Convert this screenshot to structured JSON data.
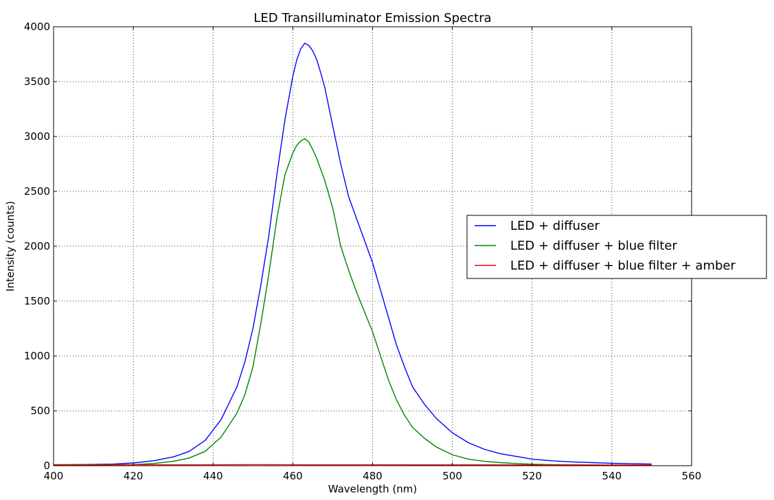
{
  "chart_data": {
    "type": "line",
    "title": "LED Transilluminator Emission Spectra",
    "xlabel": "Wavelength (nm)",
    "ylabel": "Intensity (counts)",
    "xlim": [
      400,
      560
    ],
    "ylim": [
      0,
      4000
    ],
    "xticks": [
      400,
      420,
      440,
      460,
      480,
      500,
      520,
      540,
      560
    ],
    "yticks": [
      0,
      500,
      1000,
      1500,
      2000,
      2500,
      3000,
      3500,
      4000
    ],
    "grid": true,
    "grid_style": "dotted",
    "legend_position": "center-right",
    "series": [
      {
        "name": "LED + diffuser",
        "color": "#0000ff",
        "x": [
          400,
          405,
          410,
          415,
          420,
          425,
          430,
          434,
          438,
          442,
          446,
          448,
          450,
          452,
          454,
          456,
          458,
          460,
          461,
          462,
          463,
          464,
          465,
          466,
          467,
          468,
          470,
          472,
          474,
          476,
          478,
          480,
          482,
          484,
          486,
          488,
          490,
          493,
          496,
          500,
          504,
          508,
          512,
          516,
          520,
          525,
          530,
          535,
          540,
          545,
          550
        ],
        "y": [
          8,
          10,
          12,
          15,
          25,
          45,
          80,
          130,
          230,
          420,
          720,
          950,
          1250,
          1650,
          2100,
          2650,
          3150,
          3550,
          3700,
          3800,
          3850,
          3830,
          3780,
          3700,
          3580,
          3450,
          3100,
          2750,
          2450,
          2250,
          2050,
          1850,
          1600,
          1350,
          1100,
          900,
          720,
          560,
          430,
          300,
          210,
          150,
          110,
          85,
          60,
          45,
          35,
          28,
          22,
          18,
          15
        ]
      },
      {
        "name": "LED + diffuser + blue filter",
        "color": "#008000",
        "x": [
          400,
          405,
          410,
          415,
          420,
          425,
          430,
          434,
          438,
          442,
          446,
          448,
          450,
          452,
          454,
          456,
          458,
          460,
          461,
          462,
          463,
          464,
          465,
          466,
          467,
          468,
          470,
          472,
          474,
          476,
          478,
          480,
          482,
          484,
          486,
          488,
          490,
          493,
          496,
          500,
          504,
          508,
          512,
          516,
          520,
          525,
          530,
          535,
          540,
          545,
          550
        ],
        "y": [
          4,
          5,
          6,
          8,
          10,
          20,
          40,
          70,
          130,
          260,
          480,
          650,
          900,
          1300,
          1750,
          2250,
          2650,
          2850,
          2920,
          2960,
          2980,
          2950,
          2880,
          2800,
          2700,
          2600,
          2350,
          2000,
          1780,
          1580,
          1400,
          1220,
          1000,
          780,
          600,
          460,
          350,
          250,
          170,
          100,
          60,
          40,
          28,
          20,
          14,
          10,
          8,
          6,
          5,
          4,
          4
        ]
      },
      {
        "name": "LED + diffuser + blue filter + amber",
        "color": "#ff0000",
        "x": [
          400,
          410,
          420,
          430,
          440,
          450,
          460,
          470,
          480,
          490,
          500,
          510,
          520,
          530,
          540,
          550
        ],
        "y": [
          10,
          10,
          9,
          9,
          9,
          10,
          9,
          9,
          9,
          8,
          8,
          8,
          7,
          7,
          7,
          6
        ]
      }
    ]
  }
}
